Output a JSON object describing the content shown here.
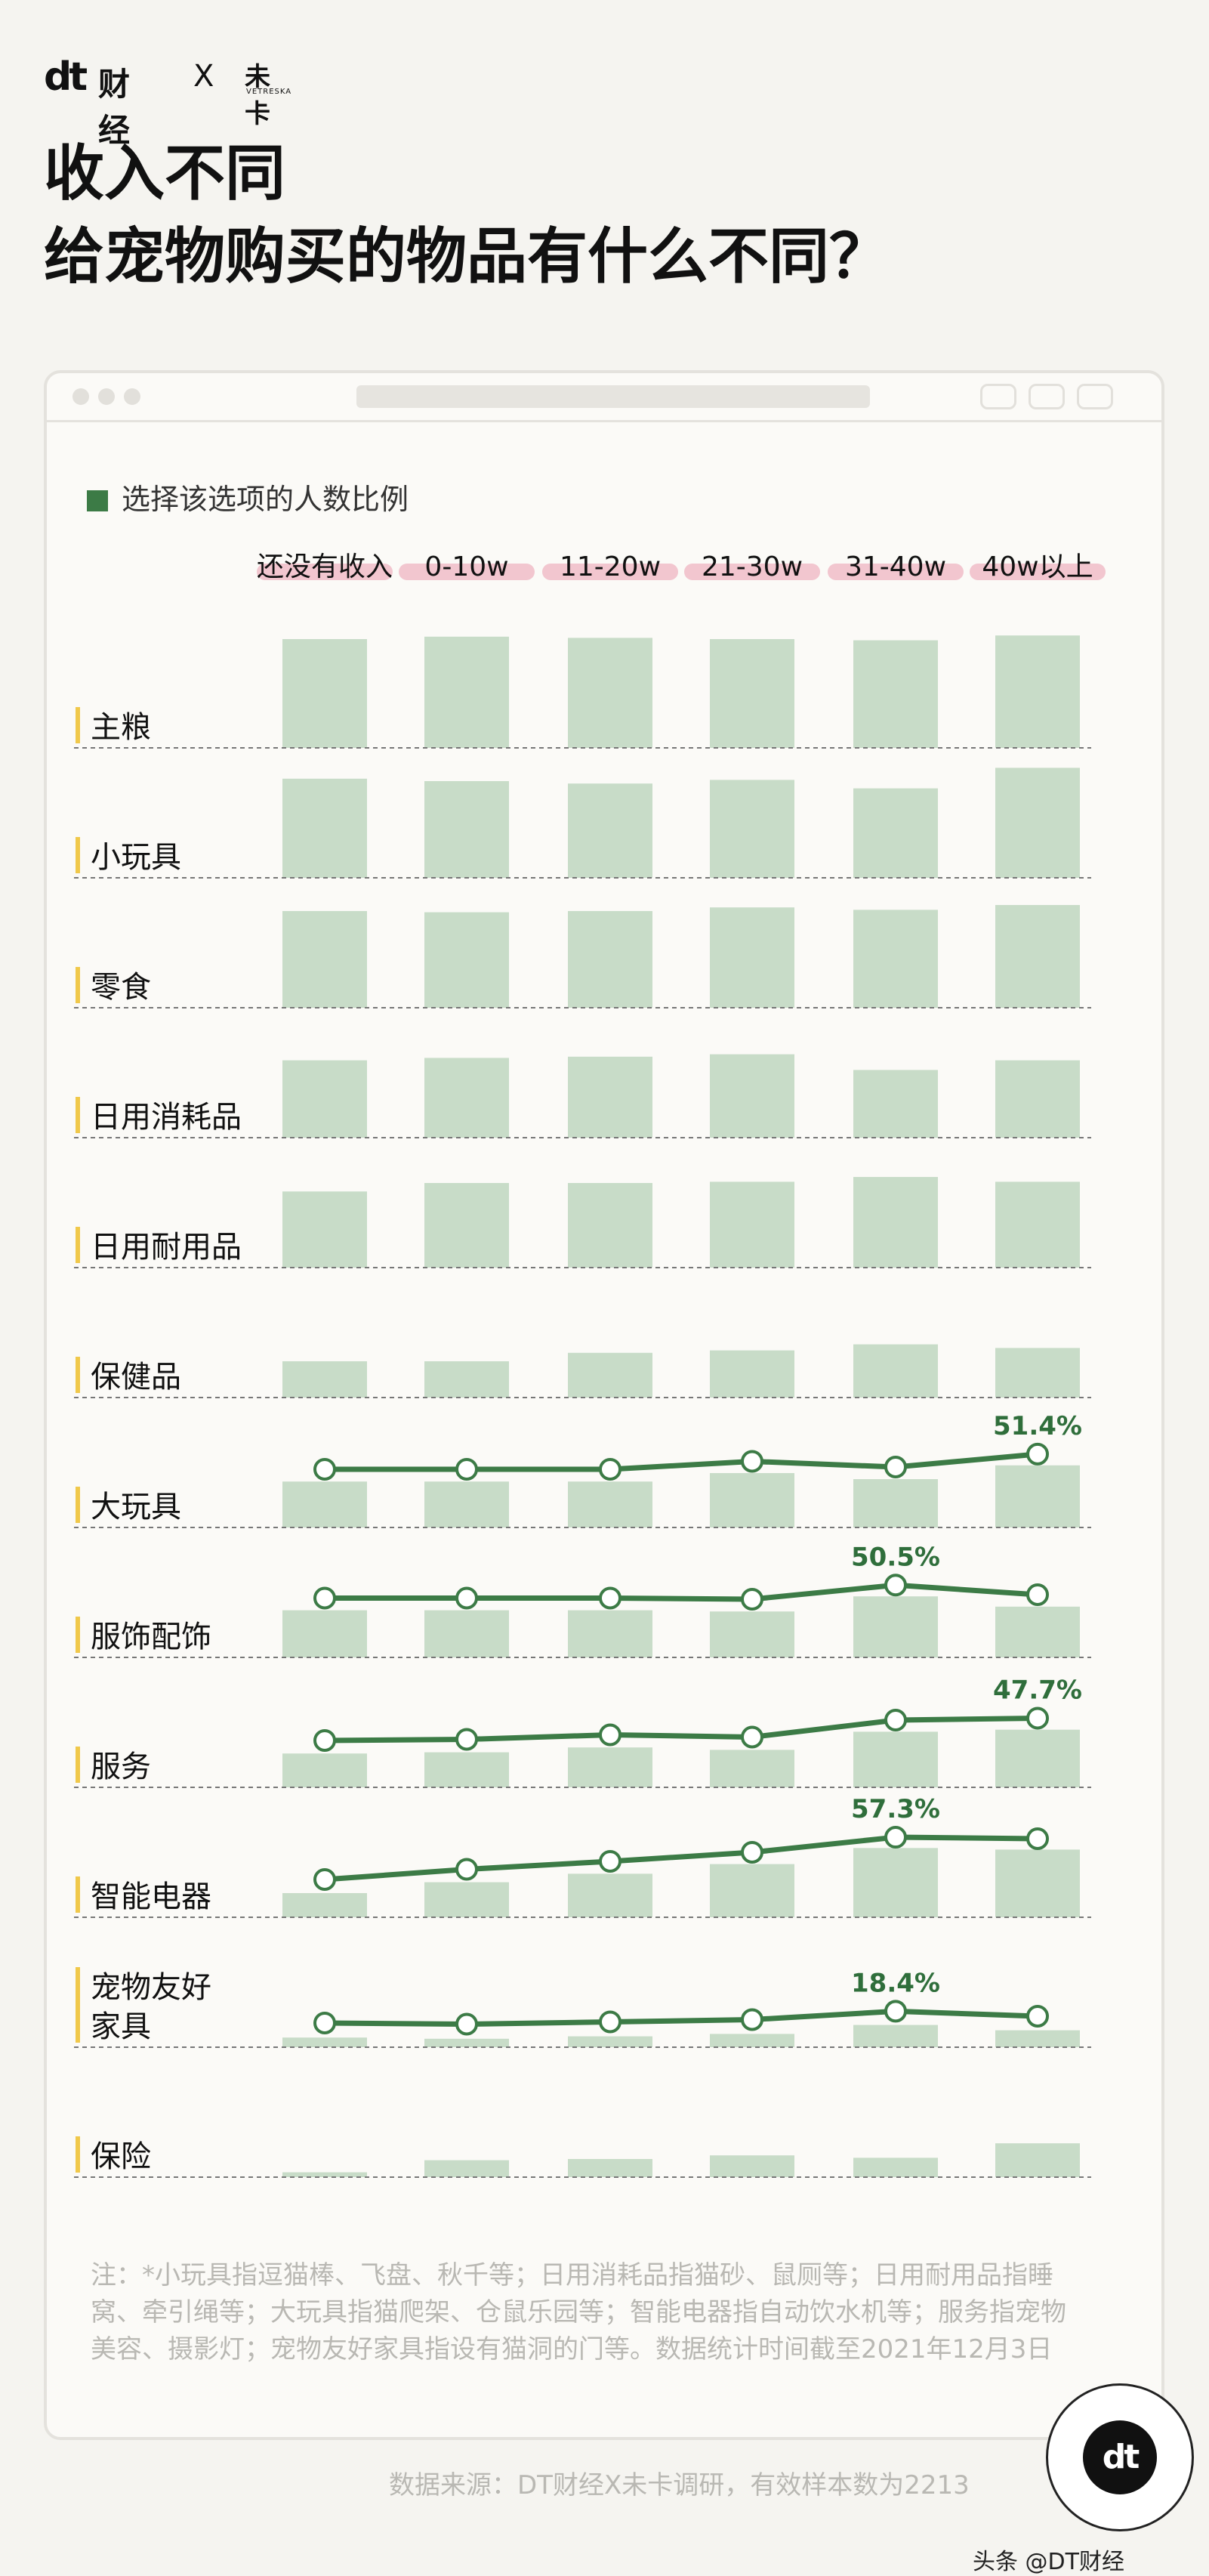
{
  "brand": {
    "logo": "dt",
    "name": "财经",
    "x": "X",
    "partner_cn": "未卡",
    "partner_en": "VETRESKA"
  },
  "title_line1": "收入不同",
  "title_line2": "给宠物购买的物品有什么不同？",
  "legend": "选择该选项的人数比例",
  "colors": {
    "bar": "#c8dcc8",
    "line": "#3c7b46",
    "label_highlight": "#f2c6cf",
    "row_marker": "#f0c84a"
  },
  "chart_data": {
    "type": "bar",
    "categories": [
      "还没有收入",
      "0-10w",
      "11-20w",
      "21-30w",
      "31-40w",
      "40w以上"
    ],
    "rows": [
      {
        "name": "主粮",
        "values": [
          90,
          92,
          91,
          90,
          89,
          93
        ]
      },
      {
        "name": "小玩具",
        "values": [
          82,
          80,
          78,
          81,
          74,
          91
        ]
      },
      {
        "name": "零食",
        "values": [
          80,
          79,
          80,
          83,
          81,
          85
        ]
      },
      {
        "name": "日用消耗品",
        "values": [
          64,
          66,
          67,
          69,
          56,
          64
        ]
      },
      {
        "name": "日用耐用品",
        "values": [
          63,
          70,
          70,
          71,
          75,
          71
        ]
      },
      {
        "name": "保健品",
        "values": [
          30,
          30,
          37,
          39,
          44,
          41
        ]
      },
      {
        "name": "大玩具",
        "values": [
          38,
          38,
          38,
          45,
          40,
          51.4
        ],
        "line": true,
        "label": "51.4%"
      },
      {
        "name": "服饰配饰",
        "values": [
          39,
          39,
          39,
          38,
          50.5,
          42
        ],
        "line": true,
        "label": "50.5%"
      },
      {
        "name": "服务",
        "values": [
          28,
          29,
          33,
          31,
          46,
          47.7
        ],
        "line": true,
        "label": "47.7%"
      },
      {
        "name": "智能电器",
        "values": [
          20,
          29,
          36,
          44,
          57.3,
          56
        ],
        "line": true,
        "label": "57.3%"
      },
      {
        "name": "宠物友好家具",
        "display_lines": [
          "宠物友好",
          "家具"
        ],
        "values": [
          8,
          7,
          9,
          11,
          18.4,
          14
        ],
        "line": true,
        "label": "18.4%"
      },
      {
        "name": "保险",
        "values": [
          4,
          14,
          15,
          18,
          16,
          28
        ]
      }
    ]
  },
  "note": "注：*小玩具指逗猫棒、飞盘、秋千等；日用消耗品指猫砂、鼠厕等；日用耐用品指睡窝、牵引绳等；大玩具指猫爬架、仓鼠乐园等；智能电器指自动饮水机等；服务指宠物美容、摄影灯；宠物友好家具指设有猫洞的门等。数据统计时间截至2021年12月3日",
  "source": "数据来源：DT财经X未卡调研，有效样本数为2213",
  "badge": "dt",
  "attribution": "头条 @DT财经"
}
